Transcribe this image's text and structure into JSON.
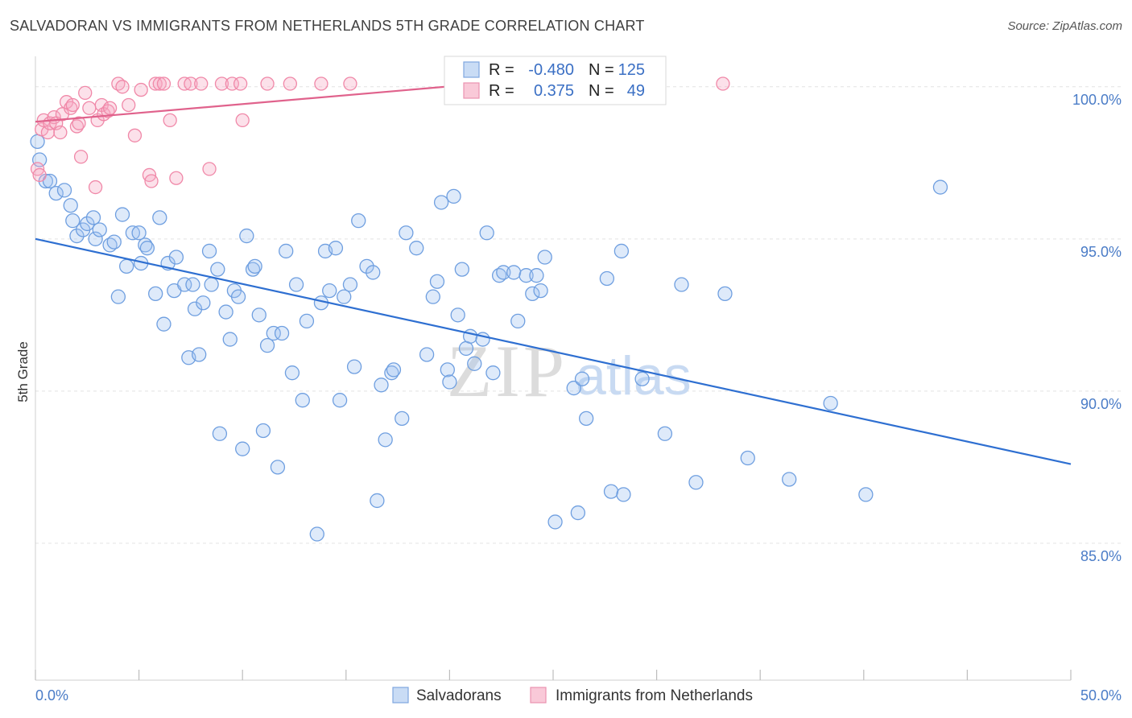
{
  "title": "SALVADORAN VS IMMIGRANTS FROM NETHERLANDS 5TH GRADE CORRELATION CHART",
  "source": "Source: ZipAtlas.com",
  "watermark": {
    "zip": "ZIP",
    "atlas": "atlas"
  },
  "legend": {
    "rows": [
      {
        "r_label": "R =",
        "r_value": "-0.480",
        "n_label": "N =",
        "n_value": "125"
      },
      {
        "r_label": "R =",
        "r_value": "0.375",
        "n_label": "N =",
        "n_value": "49"
      }
    ]
  },
  "chart_data": {
    "type": "scatter",
    "title": "SALVADORAN VS IMMIGRANTS FROM NETHERLANDS 5TH GRADE CORRELATION CHART",
    "xlabel": "",
    "ylabel": "5th Grade",
    "xlim": [
      0,
      50
    ],
    "ylim": [
      80.5,
      101
    ],
    "x_tick_labels": [
      "0.0%",
      "50.0%"
    ],
    "y_ticks": [
      100,
      95,
      90,
      85
    ],
    "y_tick_labels": [
      "100.0%",
      "95.0%",
      "90.0%",
      "85.0%"
    ],
    "grid": true,
    "legend_position": "bottom",
    "colors": {
      "salvadorans": "#6f9fe0",
      "netherlands": "#f088a8",
      "blue_line": "#2e6fd1",
      "pink_line": "#e0628c"
    },
    "series": [
      {
        "name": "Salvadorans",
        "points": [
          [
            0.1,
            98.2
          ],
          [
            0.2,
            97.6
          ],
          [
            0.5,
            96.9
          ],
          [
            0.7,
            96.9
          ],
          [
            1.0,
            96.5
          ],
          [
            1.4,
            96.6
          ],
          [
            1.7,
            96.1
          ],
          [
            1.8,
            95.6
          ],
          [
            2.0,
            95.1
          ],
          [
            2.3,
            95.3
          ],
          [
            2.5,
            95.5
          ],
          [
            2.8,
            95.7
          ],
          [
            2.9,
            95.0
          ],
          [
            3.1,
            95.3
          ],
          [
            3.6,
            94.8
          ],
          [
            3.8,
            94.9
          ],
          [
            4.2,
            95.8
          ],
          [
            4.4,
            94.1
          ],
          [
            4.7,
            95.2
          ],
          [
            5.0,
            95.2
          ],
          [
            4.0,
            93.1
          ],
          [
            5.1,
            94.2
          ],
          [
            5.3,
            94.8
          ],
          [
            5.4,
            94.7
          ],
          [
            5.8,
            93.2
          ],
          [
            6.0,
            95.7
          ],
          [
            6.2,
            92.2
          ],
          [
            6.4,
            94.2
          ],
          [
            6.7,
            93.3
          ],
          [
            6.8,
            94.4
          ],
          [
            7.2,
            93.5
          ],
          [
            7.4,
            91.1
          ],
          [
            7.6,
            93.5
          ],
          [
            7.7,
            92.7
          ],
          [
            7.9,
            91.2
          ],
          [
            8.1,
            92.9
          ],
          [
            8.4,
            94.6
          ],
          [
            8.5,
            93.5
          ],
          [
            8.8,
            94.0
          ],
          [
            8.9,
            88.6
          ],
          [
            9.2,
            92.6
          ],
          [
            9.4,
            91.7
          ],
          [
            9.6,
            93.3
          ],
          [
            9.8,
            93.1
          ],
          [
            10.0,
            88.1
          ],
          [
            10.2,
            95.1
          ],
          [
            10.5,
            94.0
          ],
          [
            10.6,
            94.1
          ],
          [
            10.8,
            92.5
          ],
          [
            11.0,
            88.7
          ],
          [
            11.2,
            91.5
          ],
          [
            11.5,
            91.9
          ],
          [
            11.7,
            87.5
          ],
          [
            11.9,
            91.9
          ],
          [
            12.1,
            94.6
          ],
          [
            12.4,
            90.6
          ],
          [
            12.6,
            93.5
          ],
          [
            12.9,
            89.7
          ],
          [
            13.1,
            92.3
          ],
          [
            13.6,
            85.3
          ],
          [
            13.8,
            92.9
          ],
          [
            14.0,
            94.6
          ],
          [
            14.2,
            93.3
          ],
          [
            14.5,
            94.7
          ],
          [
            14.7,
            89.7
          ],
          [
            14.9,
            93.1
          ],
          [
            15.2,
            93.5
          ],
          [
            15.4,
            90.8
          ],
          [
            15.6,
            95.6
          ],
          [
            16.0,
            94.1
          ],
          [
            16.3,
            93.9
          ],
          [
            16.5,
            86.4
          ],
          [
            16.7,
            90.2
          ],
          [
            16.9,
            88.4
          ],
          [
            17.2,
            90.6
          ],
          [
            17.3,
            90.7
          ],
          [
            17.7,
            89.1
          ],
          [
            17.9,
            95.2
          ],
          [
            18.4,
            94.7
          ],
          [
            18.9,
            91.2
          ],
          [
            19.2,
            93.1
          ],
          [
            19.4,
            93.6
          ],
          [
            19.6,
            96.2
          ],
          [
            19.9,
            90.7
          ],
          [
            20.0,
            90.3
          ],
          [
            20.2,
            96.4
          ],
          [
            20.4,
            92.5
          ],
          [
            20.6,
            94.0
          ],
          [
            20.8,
            91.4
          ],
          [
            21.0,
            91.8
          ],
          [
            21.2,
            90.9
          ],
          [
            21.6,
            91.7
          ],
          [
            21.8,
            95.2
          ],
          [
            22.1,
            90.6
          ],
          [
            22.4,
            93.8
          ],
          [
            22.6,
            93.9
          ],
          [
            23.1,
            93.9
          ],
          [
            23.3,
            92.3
          ],
          [
            23.7,
            93.8
          ],
          [
            24.0,
            93.2
          ],
          [
            24.2,
            93.8
          ],
          [
            24.4,
            93.3
          ],
          [
            24.6,
            94.4
          ],
          [
            25.0,
            100.0
          ],
          [
            25.1,
            85.7
          ],
          [
            26.0,
            90.1
          ],
          [
            26.2,
            86.0
          ],
          [
            26.4,
            90.4
          ],
          [
            26.6,
            89.1
          ],
          [
            27.6,
            93.7
          ],
          [
            27.8,
            86.7
          ],
          [
            28.3,
            94.6
          ],
          [
            28.4,
            86.6
          ],
          [
            29.3,
            90.4
          ],
          [
            30.4,
            88.6
          ],
          [
            31.2,
            93.5
          ],
          [
            31.9,
            87.0
          ],
          [
            33.3,
            93.2
          ],
          [
            34.4,
            87.8
          ],
          [
            36.4,
            87.1
          ],
          [
            38.4,
            89.6
          ],
          [
            40.1,
            86.6
          ],
          [
            43.7,
            96.7
          ]
        ],
        "trend": {
          "x": [
            0,
            50
          ],
          "y": [
            95.0,
            87.6
          ]
        }
      },
      {
        "name": "Immigrants from Netherlands",
        "points": [
          [
            0.1,
            97.3
          ],
          [
            0.2,
            97.1
          ],
          [
            0.3,
            98.6
          ],
          [
            0.4,
            98.9
          ],
          [
            0.6,
            98.5
          ],
          [
            0.7,
            98.8
          ],
          [
            0.9,
            99.0
          ],
          [
            1.0,
            98.8
          ],
          [
            1.2,
            98.5
          ],
          [
            1.3,
            99.1
          ],
          [
            1.5,
            99.5
          ],
          [
            1.7,
            99.3
          ],
          [
            1.8,
            99.4
          ],
          [
            2.0,
            98.7
          ],
          [
            2.1,
            98.8
          ],
          [
            2.2,
            97.7
          ],
          [
            2.4,
            99.8
          ],
          [
            2.6,
            99.3
          ],
          [
            2.9,
            96.7
          ],
          [
            3.0,
            98.9
          ],
          [
            3.2,
            99.4
          ],
          [
            3.3,
            99.1
          ],
          [
            3.5,
            99.2
          ],
          [
            3.6,
            99.3
          ],
          [
            4.0,
            100.1
          ],
          [
            4.2,
            100.0
          ],
          [
            4.5,
            99.4
          ],
          [
            4.8,
            98.4
          ],
          [
            5.1,
            99.9
          ],
          [
            5.5,
            97.1
          ],
          [
            5.6,
            96.9
          ],
          [
            5.8,
            100.1
          ],
          [
            6.0,
            100.1
          ],
          [
            6.2,
            100.1
          ],
          [
            6.5,
            98.9
          ],
          [
            6.8,
            97.0
          ],
          [
            7.2,
            100.1
          ],
          [
            7.5,
            100.1
          ],
          [
            8.0,
            100.1
          ],
          [
            8.4,
            97.3
          ],
          [
            9.0,
            100.1
          ],
          [
            9.5,
            100.1
          ],
          [
            9.9,
            100.1
          ],
          [
            10.0,
            98.9
          ],
          [
            11.2,
            100.1
          ],
          [
            12.3,
            100.1
          ],
          [
            13.8,
            100.1
          ],
          [
            15.2,
            100.1
          ],
          [
            33.2,
            100.1
          ]
        ],
        "trend": {
          "x": [
            0,
            21.5
          ],
          "y": [
            98.85,
            100.1
          ]
        }
      }
    ]
  }
}
